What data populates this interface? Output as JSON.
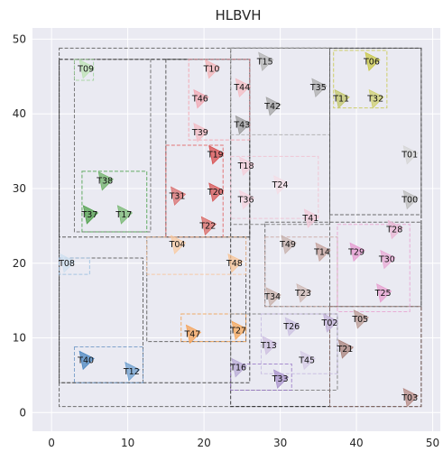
{
  "chart_data": {
    "type": "scatter",
    "title": "HLBVH",
    "xlabel": "",
    "ylabel": "",
    "xlim": [
      -2.5,
      51
    ],
    "ylim": [
      -2.5,
      51.5
    ],
    "xticks": [
      0,
      10,
      20,
      30,
      40,
      50
    ],
    "yticks": [
      0,
      10,
      20,
      30,
      40,
      50
    ],
    "grid": true,
    "background_color": "#eaeaf2",
    "points": [
      {
        "label": "T00",
        "x": 47,
        "y": 28.5,
        "color": "#bcbcbc"
      },
      {
        "label": "T01",
        "x": 47,
        "y": 34.5,
        "color": "#d6d6d6"
      },
      {
        "label": "T02",
        "x": 36.5,
        "y": 12,
        "color": "#c2b2d8"
      },
      {
        "label": "T03",
        "x": 47,
        "y": 2,
        "color": "#b58a84"
      },
      {
        "label": "T04",
        "x": 16.5,
        "y": 22.5,
        "color": "#f9cba3"
      },
      {
        "label": "T05",
        "x": 40.5,
        "y": 12.5,
        "color": "#b89993"
      },
      {
        "label": "T06",
        "x": 42,
        "y": 47,
        "color": "#c9c84a"
      },
      {
        "label": "T08",
        "x": 2,
        "y": 20,
        "color": "#cfe0f0"
      },
      {
        "label": "T09",
        "x": 4.5,
        "y": 46,
        "color": "#bde3b4"
      },
      {
        "label": "T10",
        "x": 21,
        "y": 46,
        "color": "#f3b4b8"
      },
      {
        "label": "T11",
        "x": 38,
        "y": 42,
        "color": "#c2c56a"
      },
      {
        "label": "T12",
        "x": 10.5,
        "y": 5.5,
        "color": "#6e9fcf"
      },
      {
        "label": "T13",
        "x": 28.5,
        "y": 9,
        "color": "#cdbfe0"
      },
      {
        "label": "T14",
        "x": 35.5,
        "y": 21.5,
        "color": "#c5a39d"
      },
      {
        "label": "T15",
        "x": 28,
        "y": 47,
        "color": "#b4b4b4"
      },
      {
        "label": "T16",
        "x": 24.5,
        "y": 6,
        "color": "#b8aad6"
      },
      {
        "label": "T17",
        "x": 9.5,
        "y": 26.5,
        "color": "#78b873"
      },
      {
        "label": "T18",
        "x": 25.5,
        "y": 33,
        "color": "#f4cdd9"
      },
      {
        "label": "T19",
        "x": 21.5,
        "y": 34.5,
        "color": "#d84c4c"
      },
      {
        "label": "T20",
        "x": 21.5,
        "y": 29.5,
        "color": "#d65656"
      },
      {
        "label": "T21",
        "x": 38.5,
        "y": 8.5,
        "color": "#a8827b"
      },
      {
        "label": "T22",
        "x": 20.5,
        "y": 25,
        "color": "#d96a66"
      },
      {
        "label": "T23",
        "x": 33,
        "y": 16,
        "color": "#cfb9b5"
      },
      {
        "label": "T24",
        "x": 30,
        "y": 30.5,
        "color": "#f4dde6"
      },
      {
        "label": "T25",
        "x": 43.5,
        "y": 16,
        "color": "#e7a0d0"
      },
      {
        "label": "T26",
        "x": 31.5,
        "y": 11.5,
        "color": "#ccc2e2"
      },
      {
        "label": "T27",
        "x": 24.5,
        "y": 11,
        "color": "#f5a75a"
      },
      {
        "label": "T28",
        "x": 45,
        "y": 24.5,
        "color": "#eab6d4"
      },
      {
        "label": "T29",
        "x": 40,
        "y": 21.5,
        "color": "#e59ad0"
      },
      {
        "label": "T30",
        "x": 44,
        "y": 20.5,
        "color": "#e8aad6"
      },
      {
        "label": "T31",
        "x": 16.5,
        "y": 29,
        "color": "#d97070"
      },
      {
        "label": "T32",
        "x": 42.5,
        "y": 42,
        "color": "#cfd070"
      },
      {
        "label": "T33",
        "x": 30,
        "y": 4.5,
        "color": "#a993cc"
      },
      {
        "label": "T34",
        "x": 29,
        "y": 15.5,
        "color": "#c8b0aa"
      },
      {
        "label": "T35",
        "x": 35,
        "y": 43.5,
        "color": "#aeaeae"
      },
      {
        "label": "T36",
        "x": 25.5,
        "y": 28.5,
        "color": "#f5d3df"
      },
      {
        "label": "T37",
        "x": 5,
        "y": 26.5,
        "color": "#4f9f4a"
      },
      {
        "label": "T38",
        "x": 7,
        "y": 31,
        "color": "#6fb26a"
      },
      {
        "label": "T39",
        "x": 19.5,
        "y": 37.5,
        "color": "#f3bcc4"
      },
      {
        "label": "T40",
        "x": 4.5,
        "y": 7,
        "color": "#4a86c0"
      },
      {
        "label": "T41",
        "x": 34,
        "y": 26,
        "color": "#f2c9d8"
      },
      {
        "label": "T42",
        "x": 29,
        "y": 41,
        "color": "#a4a4a4"
      },
      {
        "label": "T43",
        "x": 25,
        "y": 38.5,
        "color": "#9a9a9a"
      },
      {
        "label": "T44",
        "x": 25,
        "y": 43.5,
        "color": "#f4bcc3"
      },
      {
        "label": "T45",
        "x": 33.5,
        "y": 7,
        "color": "#d5cbe6"
      },
      {
        "label": "T46",
        "x": 19.5,
        "y": 42,
        "color": "#f2a8b3"
      },
      {
        "label": "T47",
        "x": 18.5,
        "y": 10.5,
        "color": "#f4a35a"
      },
      {
        "label": "T48",
        "x": 24,
        "y": 20,
        "color": "#f8c496"
      },
      {
        "label": "T49",
        "x": 31,
        "y": 22.5,
        "color": "#c7b1ac"
      }
    ],
    "boxes": [
      {
        "x0": 1,
        "y0": 0.8,
        "x1": 36.5,
        "y1": 48.8,
        "color": "#555555"
      },
      {
        "x0": 23.5,
        "y0": 0.8,
        "x1": 48.5,
        "y1": 48.8,
        "color": "#222222"
      },
      {
        "x0": 1,
        "y0": 4,
        "x1": 26,
        "y1": 47.3,
        "color": "#333333"
      },
      {
        "x0": 1,
        "y0": 23.5,
        "x1": 26,
        "y1": 47.3,
        "color": "#444444"
      },
      {
        "x0": 3,
        "y0": 24.2,
        "x1": 13,
        "y1": 47.3,
        "color": "#666666"
      },
      {
        "x0": 15,
        "y0": 23.5,
        "x1": 26,
        "y1": 47.3,
        "color": "#444444"
      },
      {
        "x0": 1,
        "y0": 4,
        "x1": 12,
        "y1": 20.7,
        "color": "#555555"
      },
      {
        "x0": 1,
        "y0": 18.5,
        "x1": 5,
        "y1": 20.7,
        "color": "#9bbfe0"
      },
      {
        "x0": 3,
        "y0": 4,
        "x1": 12,
        "y1": 8.8,
        "color": "#6e98c6"
      },
      {
        "x0": 3,
        "y0": 44.5,
        "x1": 5.5,
        "y1": 47.3,
        "color": "#9fd29a"
      },
      {
        "x0": 4,
        "y0": 24.2,
        "x1": 12.5,
        "y1": 32.3,
        "color": "#4aa04a"
      },
      {
        "x0": 15,
        "y0": 23.5,
        "x1": 22.5,
        "y1": 35.8,
        "color": "#e06060"
      },
      {
        "x0": 18,
        "y0": 36.5,
        "x1": 26,
        "y1": 47.3,
        "color": "#f4a0aa"
      },
      {
        "x0": 12.5,
        "y0": 9.5,
        "x1": 25.5,
        "y1": 23.5,
        "color": "#555555"
      },
      {
        "x0": 12.5,
        "y0": 18.5,
        "x1": 25.5,
        "y1": 23.5,
        "color": "#f8c39a"
      },
      {
        "x0": 17,
        "y0": 9.5,
        "x1": 25.5,
        "y1": 13.2,
        "color": "#f0a050"
      },
      {
        "x0": 23.5,
        "y0": 25.2,
        "x1": 36.5,
        "y1": 48.8,
        "color": "#777777"
      },
      {
        "x0": 23.5,
        "y0": 37.2,
        "x1": 36.5,
        "y1": 48.8,
        "color": "#aaaaaa"
      },
      {
        "x0": 23.5,
        "y0": 26,
        "x1": 35,
        "y1": 34.3,
        "color": "#f0c0d0"
      },
      {
        "x0": 36.5,
        "y0": 26.5,
        "x1": 48.5,
        "y1": 48.8,
        "color": "#555555"
      },
      {
        "x0": 37,
        "y0": 40.8,
        "x1": 44,
        "y1": 48.5,
        "color": "#c8c850"
      },
      {
        "x0": 28,
        "y0": 14.2,
        "x1": 48.5,
        "y1": 25.5,
        "color": "#555555"
      },
      {
        "x0": 28,
        "y0": 14.2,
        "x1": 37.5,
        "y1": 23.5,
        "color": "#c9a6a0"
      },
      {
        "x0": 37.5,
        "y0": 13.5,
        "x1": 47,
        "y1": 25.2,
        "color": "#e8a2d0"
      },
      {
        "x0": 36.5,
        "y0": 0.8,
        "x1": 48.5,
        "y1": 14.2,
        "color": "#8a6a64"
      },
      {
        "x0": 23.5,
        "y0": 3,
        "x1": 37.5,
        "y1": 13.2,
        "color": "#777777"
      },
      {
        "x0": 23.5,
        "y0": 3,
        "x1": 31.5,
        "y1": 6.5,
        "color": "#9a7ac8"
      },
      {
        "x0": 27.5,
        "y0": 5.2,
        "x1": 37.5,
        "y1": 13.2,
        "color": "#c4b8e0"
      }
    ]
  }
}
